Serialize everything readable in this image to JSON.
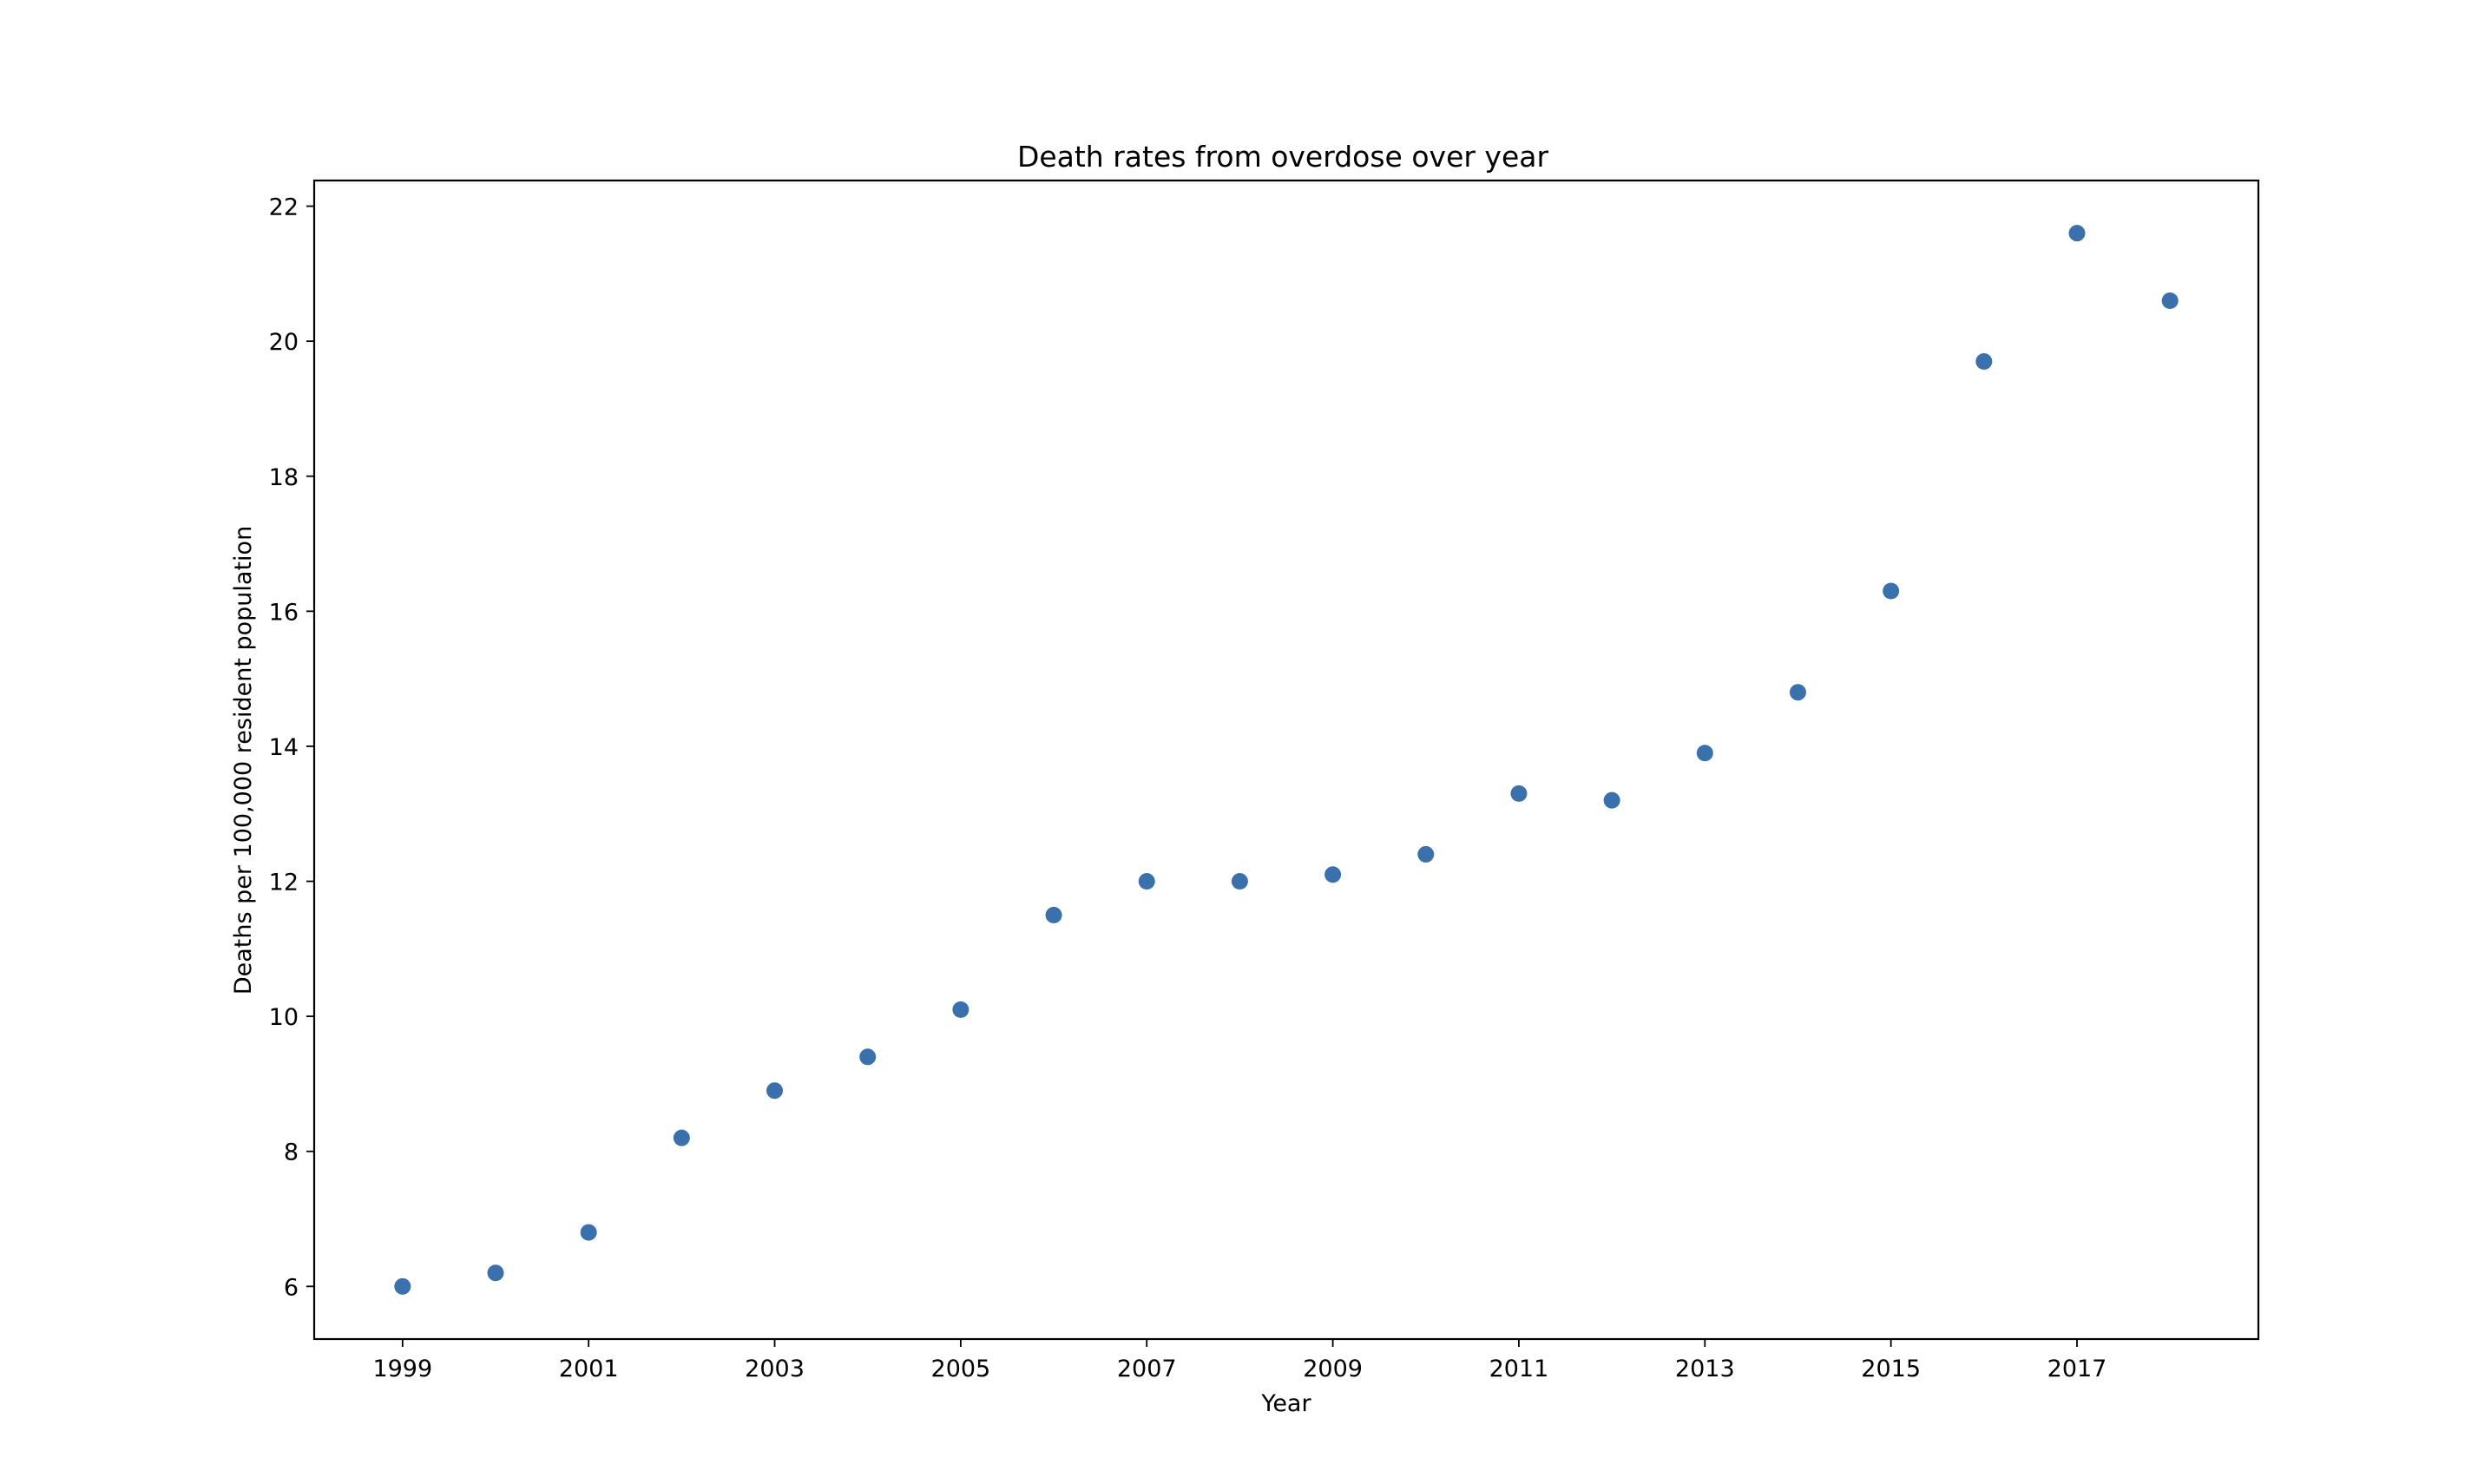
{
  "chart_data": {
    "type": "scatter",
    "title": "Death rates from overdose over year",
    "xlabel": "Year",
    "ylabel": "Deaths per 100,000 resident population",
    "x": [
      1999,
      2000,
      2001,
      2002,
      2003,
      2004,
      2005,
      2006,
      2007,
      2008,
      2009,
      2010,
      2011,
      2012,
      2013,
      2014,
      2015,
      2016,
      2017,
      2018
    ],
    "y": [
      6.0,
      6.2,
      6.8,
      8.2,
      8.9,
      9.4,
      10.1,
      11.5,
      12.0,
      12.0,
      12.1,
      12.4,
      13.3,
      13.2,
      13.9,
      14.8,
      16.3,
      19.7,
      21.6,
      20.6
    ],
    "xlim": [
      1998.05,
      2018.95
    ],
    "ylim": [
      5.22,
      22.38
    ],
    "xticks": [
      "1999",
      "2001",
      "2003",
      "2005",
      "2007",
      "2009",
      "2011",
      "2013",
      "2015",
      "2017"
    ],
    "yticks": [
      "6",
      "8",
      "10",
      "12",
      "14",
      "16",
      "18",
      "20",
      "22"
    ],
    "grid": false,
    "marker_color": "#3a70ab"
  }
}
